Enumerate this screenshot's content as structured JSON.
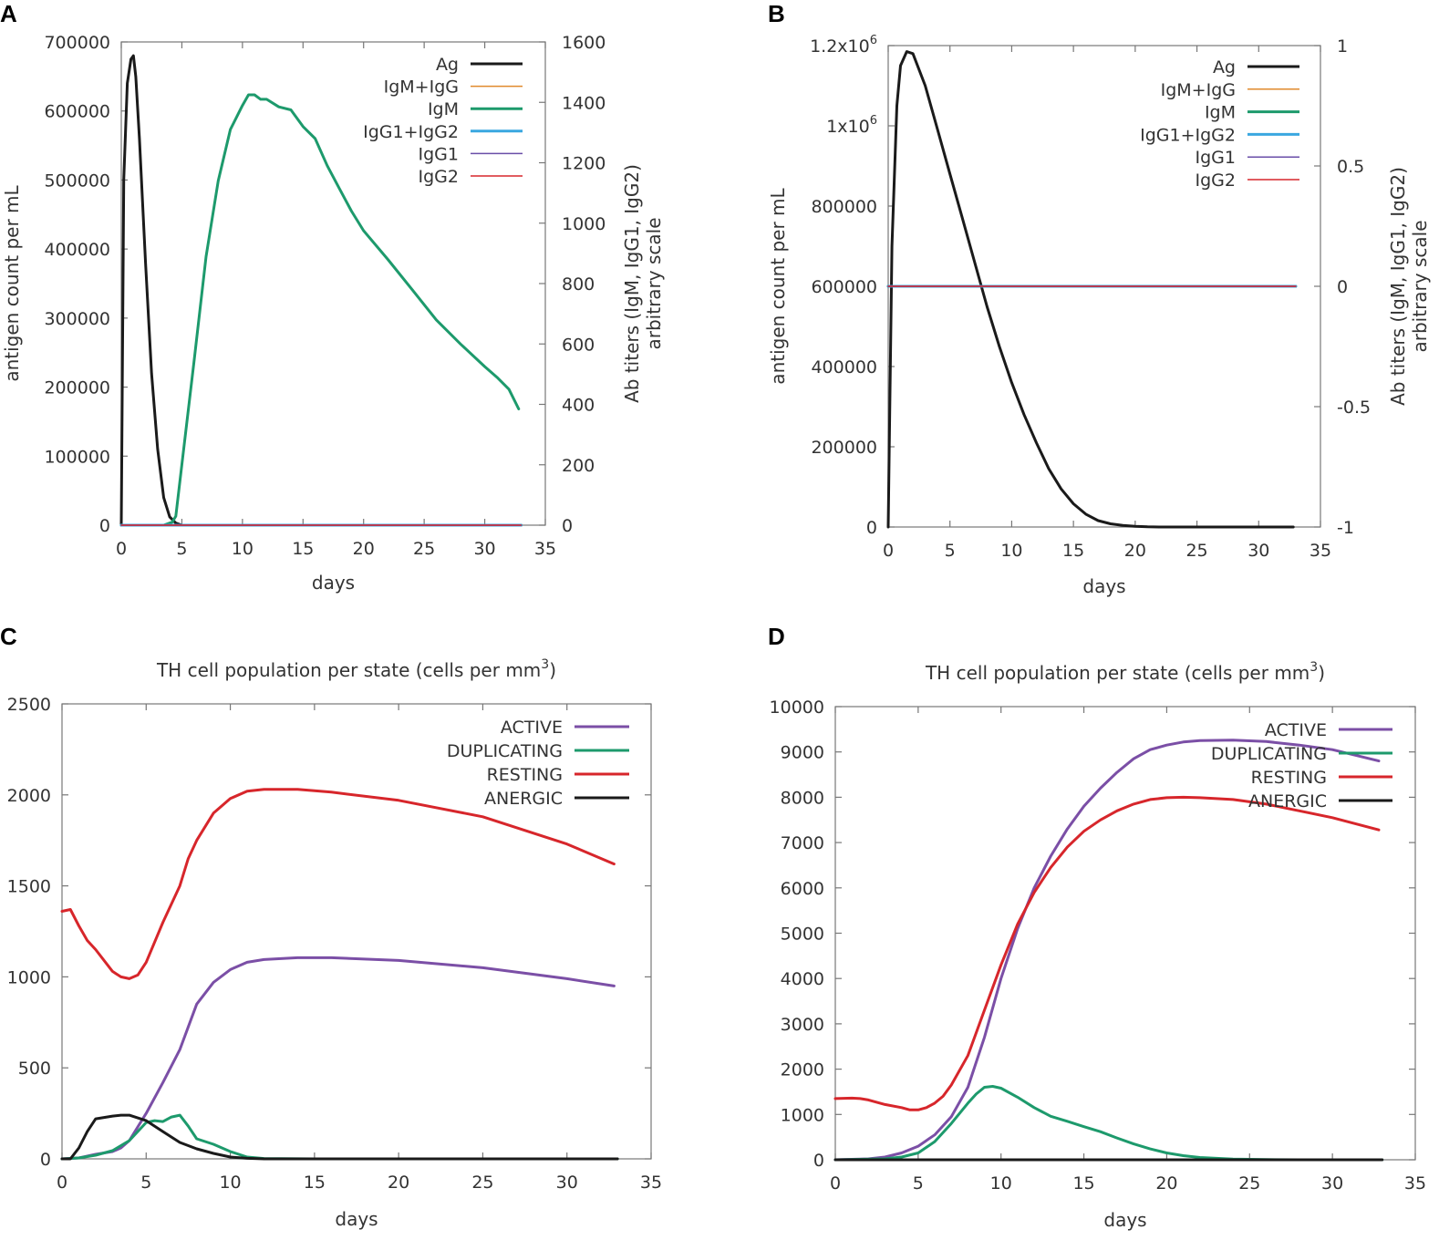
{
  "figure": {
    "panel_labels": [
      "A",
      "B",
      "C",
      "D"
    ]
  },
  "chart_data": [
    {
      "id": "A",
      "type": "line",
      "title": "",
      "xlabel": "days",
      "ylabel": "antigen count per mL",
      "y2label": [
        "Ab titers (IgM, IgG1, IgG2)",
        "arbitrary scale"
      ],
      "xlim": [
        0,
        35
      ],
      "ylim": [
        0,
        700000
      ],
      "y2lim": [
        0,
        1600
      ],
      "xticks": [
        "0",
        "5",
        "10",
        "15",
        "20",
        "25",
        "30",
        "35"
      ],
      "yticks": [
        "0",
        "100000",
        "200000",
        "300000",
        "400000",
        "500000",
        "600000",
        "700000"
      ],
      "y2ticks": [
        "0",
        "200",
        "400",
        "600",
        "800",
        "1000",
        "1200",
        "1400",
        "1600"
      ],
      "legend_position": "top-right",
      "series": [
        {
          "name": "Ag",
          "color": "#1a1a1a",
          "width": 3,
          "axis": "y",
          "x": [
            0,
            0.2,
            0.5,
            0.8,
            1.0,
            1.2,
            1.5,
            2.0,
            2.5,
            3.0,
            3.5,
            4.0,
            4.5,
            5.0,
            6,
            10,
            20,
            33
          ],
          "y": [
            0,
            500000,
            640000,
            675000,
            680000,
            650000,
            560000,
            380000,
            220000,
            110000,
            40000,
            12000,
            3000,
            0,
            0,
            0,
            0,
            0
          ]
        },
        {
          "name": "IgM+IgG",
          "color": "#e08a2c",
          "width": 1.5,
          "axis": "y2",
          "x": [
            0,
            33
          ],
          "y": [
            0,
            0
          ]
        },
        {
          "name": "IgM",
          "color": "#1d9a6c",
          "width": 3,
          "axis": "y2",
          "x": [
            0,
            3.5,
            4.2,
            4.5,
            5,
            6,
            7,
            8,
            9,
            10,
            10.5,
            11,
            11.5,
            12,
            13,
            14,
            15,
            16,
            17,
            18,
            19,
            20,
            22,
            24,
            26,
            28,
            30,
            31,
            32,
            32.8
          ],
          "y": [
            0,
            0,
            10,
            30,
            200,
            540,
            890,
            1140,
            1310,
            1390,
            1425,
            1425,
            1410,
            1410,
            1385,
            1375,
            1320,
            1280,
            1190,
            1115,
            1040,
            975,
            880,
            780,
            680,
            600,
            525,
            490,
            450,
            385
          ]
        },
        {
          "name": "IgG1+IgG2",
          "color": "#3aa7e0",
          "width": 3,
          "axis": "y2",
          "x": [
            0,
            33
          ],
          "y": [
            0,
            0
          ]
        },
        {
          "name": "IgG1",
          "color": "#6a4ea8",
          "width": 1.5,
          "axis": "y2",
          "x": [
            0,
            33
          ],
          "y": [
            0,
            0
          ]
        },
        {
          "name": "IgG2",
          "color": "#d7262b",
          "width": 1.5,
          "axis": "y2",
          "x": [
            0,
            33
          ],
          "y": [
            0,
            0
          ]
        }
      ]
    },
    {
      "id": "B",
      "type": "line",
      "title": "",
      "xlabel": "days",
      "ylabel": "antigen count per mL",
      "y2label": [
        "Ab titers (IgM, IgG1, IgG2)",
        "arbitrary scale"
      ],
      "xlim": [
        0,
        35
      ],
      "ylim": [
        0,
        1200000
      ],
      "y2lim": [
        -1,
        1
      ],
      "xticks": [
        "0",
        "5",
        "10",
        "15",
        "20",
        "25",
        "30",
        "35"
      ],
      "yticks": [
        "0",
        "200000",
        "400000",
        "600000",
        "800000",
        "1x10^6",
        "1.2x10^6"
      ],
      "y2ticks": [
        "-1",
        "-0.5",
        "0",
        "0.5",
        "1"
      ],
      "legend_position": "top-right",
      "series": [
        {
          "name": "Ag",
          "color": "#1a1a1a",
          "width": 3,
          "axis": "y",
          "x": [
            0,
            0.3,
            0.7,
            1.0,
            1.5,
            2.0,
            3,
            4,
            5,
            6,
            7,
            8,
            9,
            10,
            11,
            12,
            13,
            14,
            15,
            16,
            17,
            18,
            19,
            20,
            21,
            22,
            25,
            30,
            32.8
          ],
          "y": [
            0,
            700000,
            1050000,
            1150000,
            1185000,
            1180000,
            1100000,
            990000,
            880000,
            770000,
            660000,
            550000,
            450000,
            360000,
            280000,
            210000,
            145000,
            95000,
            58000,
            32000,
            16000,
            8000,
            4000,
            1500,
            500,
            0,
            0,
            0,
            0
          ]
        },
        {
          "name": "IgM+IgG",
          "color": "#e08a2c",
          "width": 1.5,
          "axis": "y2",
          "x": [
            0,
            33
          ],
          "y": [
            0,
            0
          ]
        },
        {
          "name": "IgM",
          "color": "#1d9a6c",
          "width": 3,
          "axis": "y2",
          "x": [
            0,
            33
          ],
          "y": [
            0,
            0
          ]
        },
        {
          "name": "IgG1+IgG2",
          "color": "#3aa7e0",
          "width": 3,
          "axis": "y2",
          "x": [
            0,
            33
          ],
          "y": [
            0,
            0
          ]
        },
        {
          "name": "IgG1",
          "color": "#6a4ea8",
          "width": 1.5,
          "axis": "y2",
          "x": [
            0,
            33
          ],
          "y": [
            0,
            0
          ]
        },
        {
          "name": "IgG2",
          "color": "#d7262b",
          "width": 1.5,
          "axis": "y2",
          "x": [
            0,
            33
          ],
          "y": [
            0,
            0
          ]
        }
      ]
    },
    {
      "id": "C",
      "type": "line",
      "title": "TH cell population per state (cells per mm",
      "title_sup": "3",
      "title_end": ")",
      "xlabel": "days",
      "ylabel": "",
      "xlim": [
        0,
        35
      ],
      "ylim": [
        0,
        2500
      ],
      "xticks": [
        "0",
        "5",
        "10",
        "15",
        "20",
        "25",
        "30",
        "35"
      ],
      "yticks": [
        "0",
        "500",
        "1000",
        "1500",
        "2000",
        "2500"
      ],
      "legend_position": "top-right",
      "series": [
        {
          "name": "ACTIVE",
          "color": "#7b4fa6",
          "width": 3,
          "x": [
            0,
            1,
            2,
            3,
            3.5,
            4,
            5,
            6,
            7,
            8,
            9,
            10,
            11,
            12,
            14,
            16,
            20,
            25,
            30,
            32.8
          ],
          "y": [
            0,
            5,
            25,
            40,
            60,
            100,
            250,
            420,
            600,
            850,
            970,
            1040,
            1080,
            1095,
            1105,
            1105,
            1090,
            1050,
            990,
            950
          ]
        },
        {
          "name": "DUPLICATING",
          "color": "#1d9a6c",
          "width": 3,
          "x": [
            0,
            1,
            2,
            3,
            4,
            5,
            5.5,
            6,
            6.5,
            7,
            7.5,
            8,
            9,
            10,
            11,
            12,
            15,
            20,
            33
          ],
          "y": [
            0,
            5,
            20,
            45,
            100,
            200,
            210,
            205,
            230,
            240,
            180,
            110,
            80,
            40,
            10,
            2,
            0,
            0,
            0
          ]
        },
        {
          "name": "RESTING",
          "color": "#d7262b",
          "width": 3,
          "x": [
            0,
            0.5,
            1,
            1.5,
            2,
            3,
            3.5,
            4,
            4.5,
            5,
            6,
            7,
            7.5,
            8,
            9,
            10,
            11,
            12,
            14,
            16,
            20,
            25,
            30,
            32.8
          ],
          "y": [
            1360,
            1370,
            1280,
            1200,
            1150,
            1030,
            1000,
            990,
            1010,
            1080,
            1300,
            1500,
            1650,
            1750,
            1900,
            1980,
            2020,
            2030,
            2030,
            2015,
            1970,
            1880,
            1730,
            1620
          ]
        },
        {
          "name": "ANERGIC",
          "color": "#1a1a1a",
          "width": 3,
          "x": [
            0,
            0.5,
            1,
            1.5,
            2,
            3,
            3.5,
            4,
            5,
            6,
            7,
            8,
            9,
            10,
            11,
            12,
            20,
            33
          ],
          "y": [
            0,
            0,
            60,
            150,
            220,
            235,
            240,
            240,
            210,
            150,
            90,
            55,
            30,
            10,
            3,
            0,
            0,
            0
          ]
        }
      ]
    },
    {
      "id": "D",
      "type": "line",
      "title": "TH cell population per state (cells per mm",
      "title_sup": "3",
      "title_end": ")",
      "xlabel": "days",
      "ylabel": "",
      "xlim": [
        0,
        35
      ],
      "ylim": [
        0,
        10000
      ],
      "xticks": [
        "0",
        "5",
        "10",
        "15",
        "20",
        "25",
        "30",
        "35"
      ],
      "yticks": [
        "0",
        "1000",
        "2000",
        "3000",
        "4000",
        "5000",
        "6000",
        "7000",
        "8000",
        "9000",
        "10000"
      ],
      "legend_position": "top-right",
      "series": [
        {
          "name": "ACTIVE",
          "color": "#7b4fa6",
          "width": 3,
          "x": [
            0,
            2,
            3,
            4,
            5,
            6,
            7,
            8,
            9,
            10,
            11,
            12,
            13,
            14,
            15,
            16,
            17,
            18,
            19,
            20,
            21,
            22,
            24,
            26,
            28,
            30,
            32.8
          ],
          "y": [
            0,
            20,
            60,
            150,
            300,
            550,
            950,
            1600,
            2700,
            4000,
            5100,
            6000,
            6700,
            7300,
            7800,
            8200,
            8550,
            8850,
            9050,
            9150,
            9220,
            9250,
            9260,
            9230,
            9150,
            9050,
            8800
          ]
        },
        {
          "name": "DUPLICATING",
          "color": "#1d9a6c",
          "width": 3,
          "x": [
            0,
            3,
            4,
            5,
            6,
            7,
            8,
            8.5,
            9,
            9.5,
            10,
            11,
            12,
            13,
            14,
            15,
            16,
            17,
            18,
            19,
            20,
            21,
            22,
            24,
            26,
            28,
            33
          ],
          "y": [
            0,
            20,
            60,
            150,
            400,
            800,
            1250,
            1450,
            1600,
            1620,
            1580,
            1380,
            1150,
            960,
            850,
            730,
            620,
            480,
            350,
            240,
            150,
            90,
            50,
            15,
            5,
            0,
            0
          ]
        },
        {
          "name": "RESTING",
          "color": "#d7262b",
          "width": 3,
          "x": [
            0,
            1,
            1.5,
            2,
            3,
            4,
            4.5,
            5,
            5.5,
            6,
            6.5,
            7,
            8,
            9,
            10,
            11,
            12,
            13,
            14,
            15,
            16,
            17,
            18,
            19,
            20,
            21,
            22,
            24,
            26,
            28,
            30,
            32.8
          ],
          "y": [
            1350,
            1360,
            1350,
            1320,
            1220,
            1150,
            1100,
            1100,
            1150,
            1250,
            1400,
            1650,
            2300,
            3300,
            4300,
            5200,
            5900,
            6450,
            6900,
            7250,
            7500,
            7700,
            7850,
            7950,
            7990,
            8000,
            7990,
            7950,
            7850,
            7700,
            7550,
            7280
          ]
        },
        {
          "name": "ANERGIC",
          "color": "#1a1a1a",
          "width": 3,
          "x": [
            0,
            33
          ],
          "y": [
            0,
            0
          ]
        }
      ]
    }
  ]
}
